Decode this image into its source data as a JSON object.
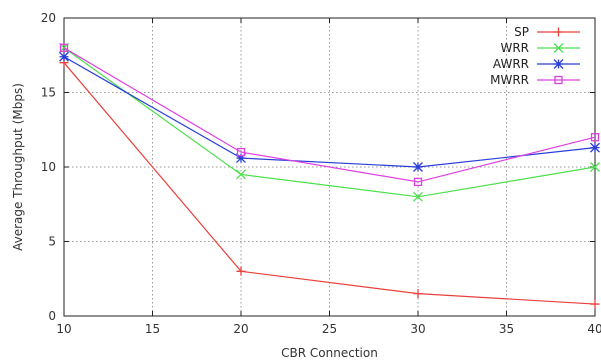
{
  "chart_data": {
    "type": "line",
    "title": "",
    "xlabel": "CBR Connection",
    "ylabel": "Average Throughput (Mbps)",
    "xlim": [
      10,
      40
    ],
    "ylim": [
      0,
      20
    ],
    "xticks": [
      10,
      15,
      20,
      25,
      30,
      35,
      40
    ],
    "yticks": [
      0,
      5,
      10,
      15,
      20
    ],
    "grid": true,
    "legend_position": "top-right",
    "x": [
      10,
      20,
      30,
      40
    ],
    "series": [
      {
        "name": "SP",
        "values": [
          17.0,
          3.0,
          1.5,
          0.8
        ],
        "color": "#e8403a",
        "marker": "plus"
      },
      {
        "name": "WRR",
        "values": [
          18.0,
          9.5,
          8.0,
          10.0
        ],
        "color": "#4de04d",
        "marker": "cross"
      },
      {
        "name": "AWRR",
        "values": [
          17.4,
          10.6,
          10.0,
          11.3
        ],
        "color": "#2a3ed8",
        "marker": "star"
      },
      {
        "name": "MWRR",
        "values": [
          18.0,
          11.0,
          9.0,
          12.0
        ],
        "color": "#e040e0",
        "marker": "square"
      }
    ]
  }
}
